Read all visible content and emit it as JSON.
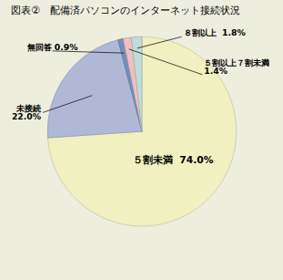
{
  "chart_data": {
    "type": "pie",
    "title": "図表②　配備済パソコンのインターネット接続状況",
    "categories": [
      "５割未満  74.0%",
      "未接続\n22.0%",
      "無回答 0.9%",
      "５割以上７割未満\n1.4%",
      "８割以上  1.8%"
    ],
    "values": [
      74.0,
      22.0,
      0.9,
      1.4,
      1.8
    ],
    "colors": [
      "#f0f0c0",
      "#b0b8d8",
      "#7090c0",
      "#f0c0c0",
      "#c0dcd8"
    ]
  }
}
